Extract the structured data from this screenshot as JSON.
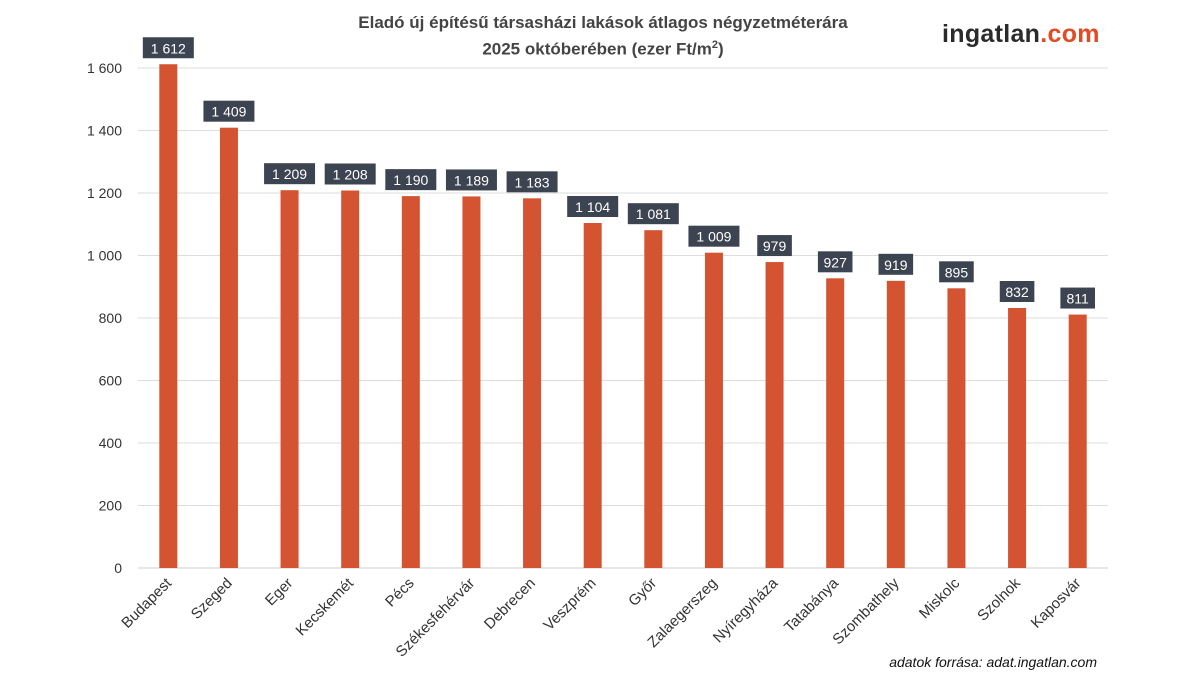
{
  "chart_data": {
    "type": "bar",
    "title_line1": "Eladó új építésű társasházi lakások átlagos négyzetméterára",
    "title_line2": "2025 októberében (ezer Ft/m",
    "title_sup": "2",
    "title_end": ")",
    "categories": [
      "Budapest",
      "Szeged",
      "Eger",
      "Kecskemét",
      "Pécs",
      "Székesfehérvár",
      "Debrecen",
      "Veszprém",
      "Győr",
      "Zalaegerszeg",
      "Nyíregyháza",
      "Tatabánya",
      "Szombathely",
      "Miskolc",
      "Szolnok",
      "Kaposvár"
    ],
    "values": [
      1612,
      1409,
      1209,
      1208,
      1190,
      1189,
      1183,
      1104,
      1081,
      1009,
      979,
      927,
      919,
      895,
      832,
      811
    ],
    "data_labels": [
      "1 612",
      "1 409",
      "1 209",
      "1 208",
      "1 190",
      "1 189",
      "1 183",
      "1 104",
      "1 081",
      "1 009",
      "979",
      "927",
      "919",
      "895",
      "832",
      "811"
    ],
    "ylim": [
      0,
      1600
    ],
    "yticks": [
      0,
      200,
      400,
      600,
      800,
      1000,
      1200,
      1400,
      1600
    ],
    "ytick_labels": [
      "0",
      "200",
      "400",
      "600",
      "800",
      "1 000",
      "1 200",
      "1 400",
      "1 600"
    ],
    "grid": true,
    "colors": {
      "bar": "#d45330",
      "label_bg": "#3d4451",
      "label_text": "#ffffff",
      "grid": "#dddddd",
      "accent": "#e24a24"
    }
  },
  "logo": {
    "text": "ingatlan",
    "suffix": ".com"
  },
  "source": "adatok forrása: adat.ingatlan.com"
}
